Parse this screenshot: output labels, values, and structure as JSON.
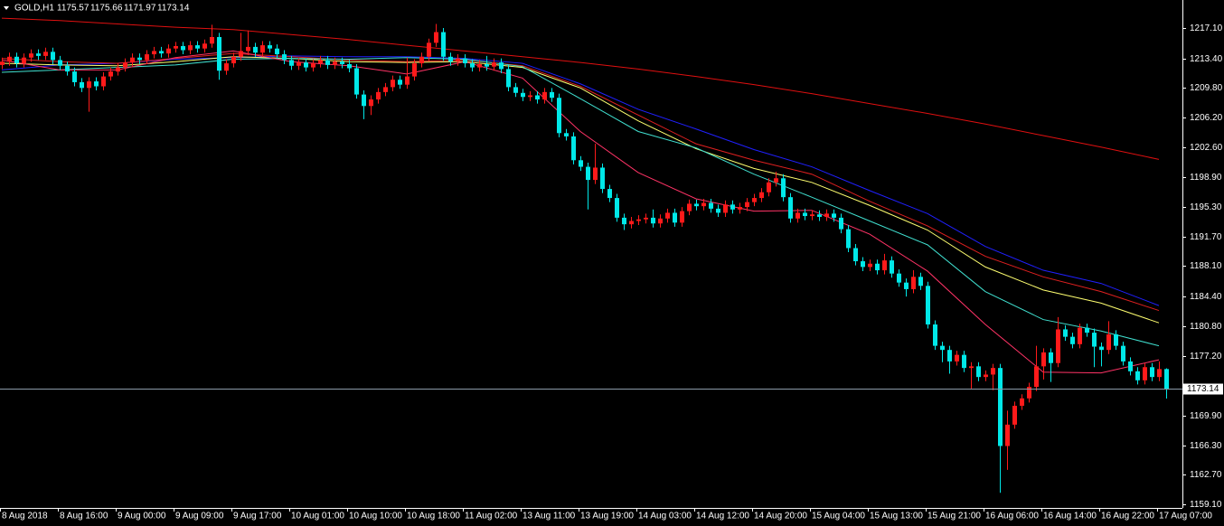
{
  "chart_data": {
    "type": "candlestick",
    "title": "GOLD,H1",
    "bull_color": "#ff1a1a",
    "bear_color": "#00e8e8",
    "ylim": [
      1158.66,
      1220.51
    ],
    "yticks": [
      {
        "value": 1217.1,
        "label": "1217.10"
      },
      {
        "value": 1213.4,
        "label": "1213.40"
      },
      {
        "value": 1209.8,
        "label": "1209.80"
      },
      {
        "value": 1206.2,
        "label": "1206.20"
      },
      {
        "value": 1202.6,
        "label": "1202.60"
      },
      {
        "value": 1198.9,
        "label": "1198.90"
      },
      {
        "value": 1195.3,
        "label": "1195.30"
      },
      {
        "value": 1191.7,
        "label": "1191.70"
      },
      {
        "value": 1188.1,
        "label": "1188.10"
      },
      {
        "value": 1184.4,
        "label": "1184.40"
      },
      {
        "value": 1180.8,
        "label": "1180.80"
      },
      {
        "value": 1177.2,
        "label": "1177.20"
      },
      {
        "value": 1169.9,
        "label": "1169.90"
      },
      {
        "value": 1166.3,
        "label": "1166.30"
      },
      {
        "value": 1162.7,
        "label": "1162.70"
      },
      {
        "value": 1159.1,
        "label": "1159.10"
      }
    ],
    "categories": [
      "8 Aug 2018",
      "8 Aug 16:00",
      "9 Aug 00:00",
      "9 Aug 09:00",
      "9 Aug 17:00",
      "10 Aug 01:00",
      "10 Aug 10:00",
      "10 Aug 18:00",
      "11 Aug 02:00",
      "13 Aug 11:00",
      "13 Aug 19:00",
      "14 Aug 03:00",
      "14 Aug 12:00",
      "14 Aug 20:00",
      "15 Aug 04:00",
      "15 Aug 13:00",
      "15 Aug 21:00",
      "16 Aug 06:00",
      "16 Aug 14:00",
      "16 Aug 22:00",
      "17 Aug 07:00"
    ],
    "series": [
      {
        "color": "#e01010",
        "values": [
          1218.3,
          1218.0,
          1217.6,
          1217.2,
          1216.9,
          1216.3,
          1215.7,
          1215.0,
          1214.3,
          1213.6,
          1212.9,
          1212.1,
          1211.2,
          1210.2,
          1209.1,
          1207.9,
          1206.7,
          1205.4,
          1204.0,
          1202.6,
          1201.1
        ]
      },
      {
        "color": "#2020ff",
        "values": [
          1212.0,
          1212.6,
          1212.8,
          1213.3,
          1213.5,
          1213.7,
          1213.6,
          1213.6,
          1213.4,
          1212.8,
          1210.3,
          1207.2,
          1204.8,
          1202.3,
          1200.2,
          1197.3,
          1194.5,
          1190.5,
          1187.6,
          1186.0,
          1183.3
        ]
      },
      {
        "color": "#e02020",
        "values": [
          1213.4,
          1213.0,
          1212.8,
          1213.4,
          1214.0,
          1213.6,
          1213.2,
          1213.0,
          1213.2,
          1212.5,
          1210.0,
          1206.5,
          1203.0,
          1201.0,
          1199.3,
          1196.0,
          1193.0,
          1189.3,
          1186.8,
          1185.0,
          1182.7
        ]
      },
      {
        "color": "#ffff70",
        "values": [
          1212.8,
          1212.6,
          1212.5,
          1213.0,
          1213.6,
          1213.4,
          1213.0,
          1212.9,
          1213.0,
          1212.3,
          1209.8,
          1205.8,
          1202.4,
          1200.0,
          1198.3,
          1195.5,
          1192.5,
          1188.0,
          1185.2,
          1183.6,
          1181.2
        ]
      },
      {
        "color": "#40e0d0",
        "values": [
          1211.7,
          1212.0,
          1212.3,
          1212.6,
          1213.3,
          1213.4,
          1213.3,
          1213.5,
          1213.3,
          1212.4,
          1208.5,
          1204.5,
          1202.5,
          1199.3,
          1196.5,
          1193.6,
          1190.7,
          1185.0,
          1181.6,
          1180.2,
          1178.4
        ]
      },
      {
        "color": "#ff3366",
        "values": [
          1213.2,
          1212.0,
          1212.0,
          1213.5,
          1214.3,
          1213.0,
          1212.5,
          1211.5,
          1213.0,
          1211.0,
          1204.5,
          1199.5,
          1196.3,
          1194.8,
          1194.9,
          1192.0,
          1187.5,
          1181.0,
          1175.2,
          1175.1,
          1176.7
        ]
      }
    ],
    "ohlc": [
      [
        1212.6,
        1213.5,
        1212.1,
        1213.0
      ],
      [
        1213.0,
        1214.1,
        1212.5,
        1213.6
      ],
      [
        1213.6,
        1214.1,
        1212.3,
        1212.8
      ],
      [
        1212.8,
        1214.0,
        1212.3,
        1213.5
      ],
      [
        1213.5,
        1214.5,
        1213.0,
        1214.0
      ],
      [
        1214.0,
        1214.5,
        1213.2,
        1213.7
      ],
      [
        1213.7,
        1214.7,
        1213.2,
        1214.2
      ],
      [
        1214.2,
        1214.7,
        1212.7,
        1213.2
      ],
      [
        1213.2,
        1213.7,
        1212.0,
        1212.5
      ],
      [
        1212.5,
        1213.0,
        1211.3,
        1211.8
      ],
      [
        1211.8,
        1212.3,
        1210.0,
        1210.5
      ],
      [
        1210.5,
        1211.0,
        1209.3,
        1209.8
      ],
      [
        1209.8,
        1211.1,
        1206.9,
        1210.6
      ],
      [
        1210.6,
        1211.1,
        1209.5,
        1210.0
      ],
      [
        1210.0,
        1211.7,
        1209.5,
        1211.2
      ],
      [
        1211.2,
        1212.3,
        1210.7,
        1211.8
      ],
      [
        1211.8,
        1212.8,
        1211.3,
        1212.3
      ],
      [
        1212.3,
        1213.4,
        1211.8,
        1212.9
      ],
      [
        1212.9,
        1214.0,
        1212.4,
        1213.5
      ],
      [
        1213.5,
        1214.0,
        1212.7,
        1213.2
      ],
      [
        1213.2,
        1214.4,
        1212.7,
        1213.9
      ],
      [
        1213.9,
        1214.8,
        1213.4,
        1214.3
      ],
      [
        1214.3,
        1214.8,
        1213.5,
        1214.0
      ],
      [
        1214.0,
        1215.1,
        1213.5,
        1214.6
      ],
      [
        1214.6,
        1215.4,
        1214.1,
        1214.9
      ],
      [
        1214.9,
        1215.4,
        1213.9,
        1214.4
      ],
      [
        1214.4,
        1215.5,
        1213.9,
        1215.0
      ],
      [
        1215.0,
        1215.5,
        1214.1,
        1214.6
      ],
      [
        1214.6,
        1215.7,
        1214.1,
        1215.2
      ],
      [
        1215.2,
        1217.5,
        1214.7,
        1216.0
      ],
      [
        1216.0,
        1216.5,
        1210.8,
        1211.9
      ],
      [
        1211.9,
        1213.3,
        1211.4,
        1212.8
      ],
      [
        1212.8,
        1214.1,
        1212.3,
        1213.6
      ],
      [
        1213.6,
        1216.5,
        1213.1,
        1214.3
      ],
      [
        1214.3,
        1216.8,
        1213.8,
        1214.8
      ],
      [
        1214.8,
        1215.3,
        1213.6,
        1214.1
      ],
      [
        1214.1,
        1215.5,
        1213.6,
        1215.0
      ],
      [
        1215.0,
        1215.5,
        1214.1,
        1214.6
      ],
      [
        1214.6,
        1215.1,
        1213.4,
        1213.9
      ],
      [
        1213.9,
        1214.4,
        1212.7,
        1213.2
      ],
      [
        1213.2,
        1213.7,
        1212.0,
        1212.5
      ],
      [
        1212.5,
        1213.4,
        1212.0,
        1212.9
      ],
      [
        1212.9,
        1213.4,
        1211.8,
        1212.3
      ],
      [
        1212.3,
        1213.3,
        1211.8,
        1212.8
      ],
      [
        1212.8,
        1213.7,
        1212.3,
        1213.2
      ],
      [
        1213.2,
        1213.7,
        1212.1,
        1212.6
      ],
      [
        1212.6,
        1213.5,
        1212.1,
        1213.0
      ],
      [
        1213.0,
        1213.5,
        1212.2,
        1212.7
      ],
      [
        1212.7,
        1213.2,
        1211.7,
        1212.2
      ],
      [
        1212.2,
        1212.7,
        1208.5,
        1209.0
      ],
      [
        1209.0,
        1209.5,
        1206.0,
        1207.6
      ],
      [
        1207.6,
        1208.9,
        1206.5,
        1208.4
      ],
      [
        1208.4,
        1209.8,
        1207.9,
        1209.3
      ],
      [
        1209.3,
        1210.4,
        1208.8,
        1209.9
      ],
      [
        1209.9,
        1211.3,
        1209.4,
        1210.8
      ],
      [
        1210.8,
        1211.3,
        1209.7,
        1210.2
      ],
      [
        1210.2,
        1213.5,
        1209.7,
        1211.2
      ],
      [
        1211.2,
        1213.3,
        1210.7,
        1212.8
      ],
      [
        1212.8,
        1214.1,
        1212.3,
        1213.6
      ],
      [
        1213.6,
        1215.8,
        1213.1,
        1215.3
      ],
      [
        1215.3,
        1217.6,
        1214.8,
        1216.6
      ],
      [
        1216.6,
        1217.1,
        1213.1,
        1213.6
      ],
      [
        1213.6,
        1214.1,
        1212.5,
        1213.0
      ],
      [
        1213.0,
        1213.9,
        1212.5,
        1213.4
      ],
      [
        1213.4,
        1213.9,
        1212.3,
        1212.8
      ],
      [
        1212.8,
        1213.3,
        1211.8,
        1212.3
      ],
      [
        1212.3,
        1213.2,
        1211.8,
        1212.7
      ],
      [
        1212.7,
        1213.7,
        1211.9,
        1212.4
      ],
      [
        1212.4,
        1213.4,
        1211.9,
        1212.9
      ],
      [
        1212.9,
        1213.4,
        1211.6,
        1212.1
      ],
      [
        1212.1,
        1212.6,
        1209.4,
        1209.9
      ],
      [
        1209.9,
        1210.4,
        1208.7,
        1209.2
      ],
      [
        1209.2,
        1209.7,
        1208.2,
        1208.7
      ],
      [
        1208.7,
        1209.4,
        1208.2,
        1208.9
      ],
      [
        1208.9,
        1209.4,
        1207.9,
        1208.4
      ],
      [
        1208.4,
        1209.8,
        1207.9,
        1209.3
      ],
      [
        1209.3,
        1209.8,
        1208.1,
        1208.6
      ],
      [
        1208.6,
        1209.1,
        1203.8,
        1204.3
      ],
      [
        1204.3,
        1204.8,
        1203.4,
        1203.9
      ],
      [
        1203.9,
        1204.4,
        1200.5,
        1201.0
      ],
      [
        1201.0,
        1201.5,
        1199.7,
        1200.2
      ],
      [
        1200.2,
        1200.7,
        1195.0,
        1198.6
      ],
      [
        1198.6,
        1203.0,
        1198.1,
        1200.1
      ],
      [
        1200.1,
        1200.6,
        1197.0,
        1197.5
      ],
      [
        1197.5,
        1198.0,
        1195.9,
        1196.4
      ],
      [
        1196.4,
        1196.9,
        1193.5,
        1194.0
      ],
      [
        1194.0,
        1194.5,
        1192.5,
        1193.2
      ],
      [
        1193.2,
        1194.1,
        1192.7,
        1193.6
      ],
      [
        1193.6,
        1194.3,
        1193.1,
        1193.8
      ],
      [
        1193.8,
        1194.5,
        1193.3,
        1194.0
      ],
      [
        1194.0,
        1195.0,
        1192.8,
        1193.3
      ],
      [
        1193.3,
        1194.4,
        1192.8,
        1193.9
      ],
      [
        1193.9,
        1195.1,
        1193.4,
        1194.6
      ],
      [
        1194.6,
        1195.1,
        1192.9,
        1193.4
      ],
      [
        1193.4,
        1195.3,
        1192.9,
        1194.8
      ],
      [
        1194.8,
        1196.2,
        1194.3,
        1195.7
      ],
      [
        1195.7,
        1196.2,
        1194.9,
        1195.4
      ],
      [
        1195.4,
        1196.3,
        1194.9,
        1195.8
      ],
      [
        1195.8,
        1196.3,
        1194.6,
        1195.1
      ],
      [
        1195.1,
        1195.6,
        1194.1,
        1194.6
      ],
      [
        1194.6,
        1196.1,
        1194.1,
        1195.6
      ],
      [
        1195.6,
        1196.1,
        1194.5,
        1195.0
      ],
      [
        1195.0,
        1195.8,
        1194.5,
        1195.3
      ],
      [
        1195.3,
        1196.4,
        1194.8,
        1195.9
      ],
      [
        1195.9,
        1196.9,
        1195.4,
        1196.4
      ],
      [
        1196.4,
        1197.6,
        1195.9,
        1197.1
      ],
      [
        1197.1,
        1198.8,
        1196.6,
        1198.3
      ],
      [
        1198.3,
        1199.6,
        1197.8,
        1198.8
      ],
      [
        1198.8,
        1199.3,
        1196.0,
        1196.5
      ],
      [
        1196.5,
        1197.0,
        1193.4,
        1193.9
      ],
      [
        1193.9,
        1195.1,
        1193.4,
        1194.6
      ],
      [
        1194.6,
        1195.1,
        1193.7,
        1194.2
      ],
      [
        1194.2,
        1194.9,
        1193.7,
        1194.4
      ],
      [
        1194.4,
        1194.9,
        1193.6,
        1194.1
      ],
      [
        1194.1,
        1195.0,
        1193.6,
        1194.5
      ],
      [
        1194.5,
        1195.0,
        1193.5,
        1194.0
      ],
      [
        1194.0,
        1194.5,
        1192.1,
        1192.6
      ],
      [
        1192.6,
        1193.1,
        1189.8,
        1190.3
      ],
      [
        1190.3,
        1190.8,
        1188.2,
        1188.7
      ],
      [
        1188.7,
        1189.2,
        1187.5,
        1188.0
      ],
      [
        1188.0,
        1188.9,
        1187.5,
        1188.4
      ],
      [
        1188.4,
        1188.9,
        1187.1,
        1187.6
      ],
      [
        1187.6,
        1189.6,
        1187.1,
        1188.8
      ],
      [
        1188.8,
        1189.3,
        1186.7,
        1187.2
      ],
      [
        1187.2,
        1187.7,
        1185.6,
        1186.1
      ],
      [
        1186.1,
        1186.6,
        1184.4,
        1185.3
      ],
      [
        1185.3,
        1187.6,
        1184.8,
        1186.8
      ],
      [
        1186.8,
        1187.3,
        1185.2,
        1185.7
      ],
      [
        1185.7,
        1186.2,
        1180.5,
        1181.0
      ],
      [
        1181.0,
        1181.5,
        1177.9,
        1178.4
      ],
      [
        1178.4,
        1178.9,
        1176.4,
        1177.9
      ],
      [
        1177.9,
        1178.4,
        1175.0,
        1176.5
      ],
      [
        1176.5,
        1177.8,
        1176.0,
        1177.3
      ],
      [
        1177.3,
        1177.8,
        1175.2,
        1175.7
      ],
      [
        1175.7,
        1176.4,
        1173.2,
        1175.9
      ],
      [
        1175.9,
        1176.4,
        1174.1,
        1174.6
      ],
      [
        1174.6,
        1175.4,
        1174.1,
        1174.9
      ],
      [
        1174.9,
        1176.2,
        1173.0,
        1175.7
      ],
      [
        1175.7,
        1176.2,
        1160.5,
        1166.2
      ],
      [
        1166.2,
        1170.5,
        1163.3,
        1168.8
      ],
      [
        1168.8,
        1171.6,
        1168.3,
        1171.1
      ],
      [
        1171.1,
        1172.5,
        1170.6,
        1172.0
      ],
      [
        1172.0,
        1173.9,
        1171.5,
        1173.4
      ],
      [
        1173.4,
        1178.4,
        1172.9,
        1175.9
      ],
      [
        1175.9,
        1178.1,
        1174.3,
        1177.6
      ],
      [
        1177.6,
        1178.1,
        1174.0,
        1176.3
      ],
      [
        1176.3,
        1181.9,
        1175.8,
        1180.4
      ],
      [
        1180.4,
        1180.9,
        1179.0,
        1179.5
      ],
      [
        1179.5,
        1180.0,
        1178.1,
        1178.6
      ],
      [
        1178.6,
        1181.1,
        1178.1,
        1180.6
      ],
      [
        1180.6,
        1181.1,
        1179.5,
        1180.0
      ],
      [
        1180.0,
        1180.5,
        1175.8,
        1178.3
      ],
      [
        1178.3,
        1178.8,
        1175.9,
        1177.9
      ],
      [
        1177.9,
        1181.4,
        1177.4,
        1179.8
      ],
      [
        1179.8,
        1180.3,
        1177.9,
        1178.4
      ],
      [
        1178.4,
        1178.9,
        1176.0,
        1176.5
      ],
      [
        1176.5,
        1177.0,
        1174.8,
        1175.3
      ],
      [
        1175.3,
        1175.8,
        1173.7,
        1174.2
      ],
      [
        1174.2,
        1176.3,
        1173.7,
        1175.8
      ],
      [
        1175.8,
        1176.3,
        1174.1,
        1174.6
      ],
      [
        1174.6,
        1176.5,
        1174.1,
        1175.57
      ],
      [
        1175.57,
        1175.66,
        1171.97,
        1173.14
      ]
    ]
  }
}
